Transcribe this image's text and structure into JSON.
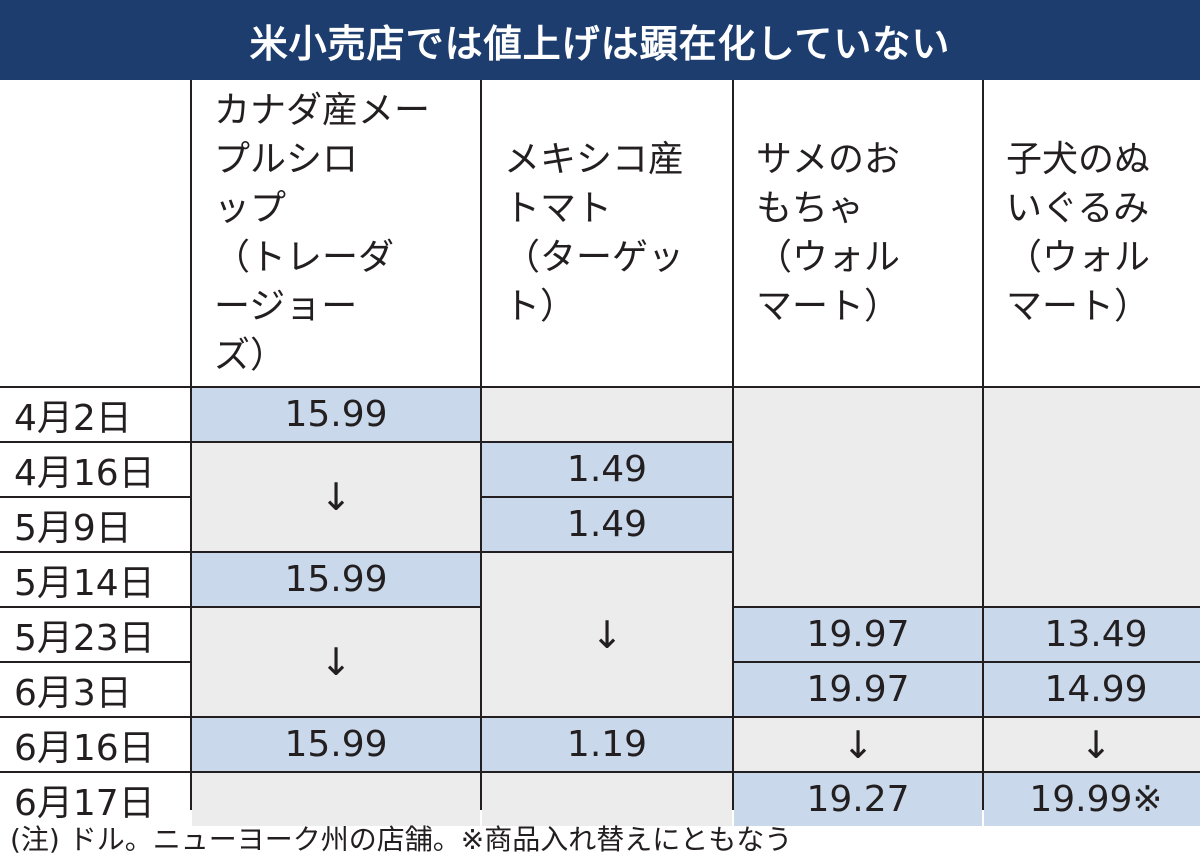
{
  "title": "米小売店では値上げは顕在化していない",
  "columns": [
    "カナダ産メー\nプルシロ\nップ\n（トレーダ\nージョー\nズ）",
    "メキシコ産\nトマト\n（ターゲッ\nト）",
    "サメのお\nもちゃ\n（ウォル\nマート）",
    "子犬のぬ\nいぐるみ\n（ウォル\nマート）"
  ],
  "dates": [
    "4月2日",
    "4月16日",
    "5月9日",
    "5月14日",
    "5月23日",
    "6月3日",
    "6月16日",
    "6月17日"
  ],
  "values": {
    "syrup": [
      "15.99",
      "↓",
      "15.99",
      "↓",
      "15.99"
    ],
    "tomato": [
      "1.49",
      "1.49",
      "↓",
      "1.19"
    ],
    "shark": [
      "19.97",
      "19.97",
      "↓",
      "19.27"
    ],
    "puppy": [
      "13.49",
      "14.99",
      "↓",
      "19.99※"
    ]
  },
  "note": "(注) ドル。ニューヨーク州の店舗。※商品入れ替えにともなう",
  "colors": {
    "title_bg": "#1c3d6e",
    "price_cell": "#c9d9eb",
    "empty_cell": "#ececec",
    "grid_line": "#231f20"
  }
}
